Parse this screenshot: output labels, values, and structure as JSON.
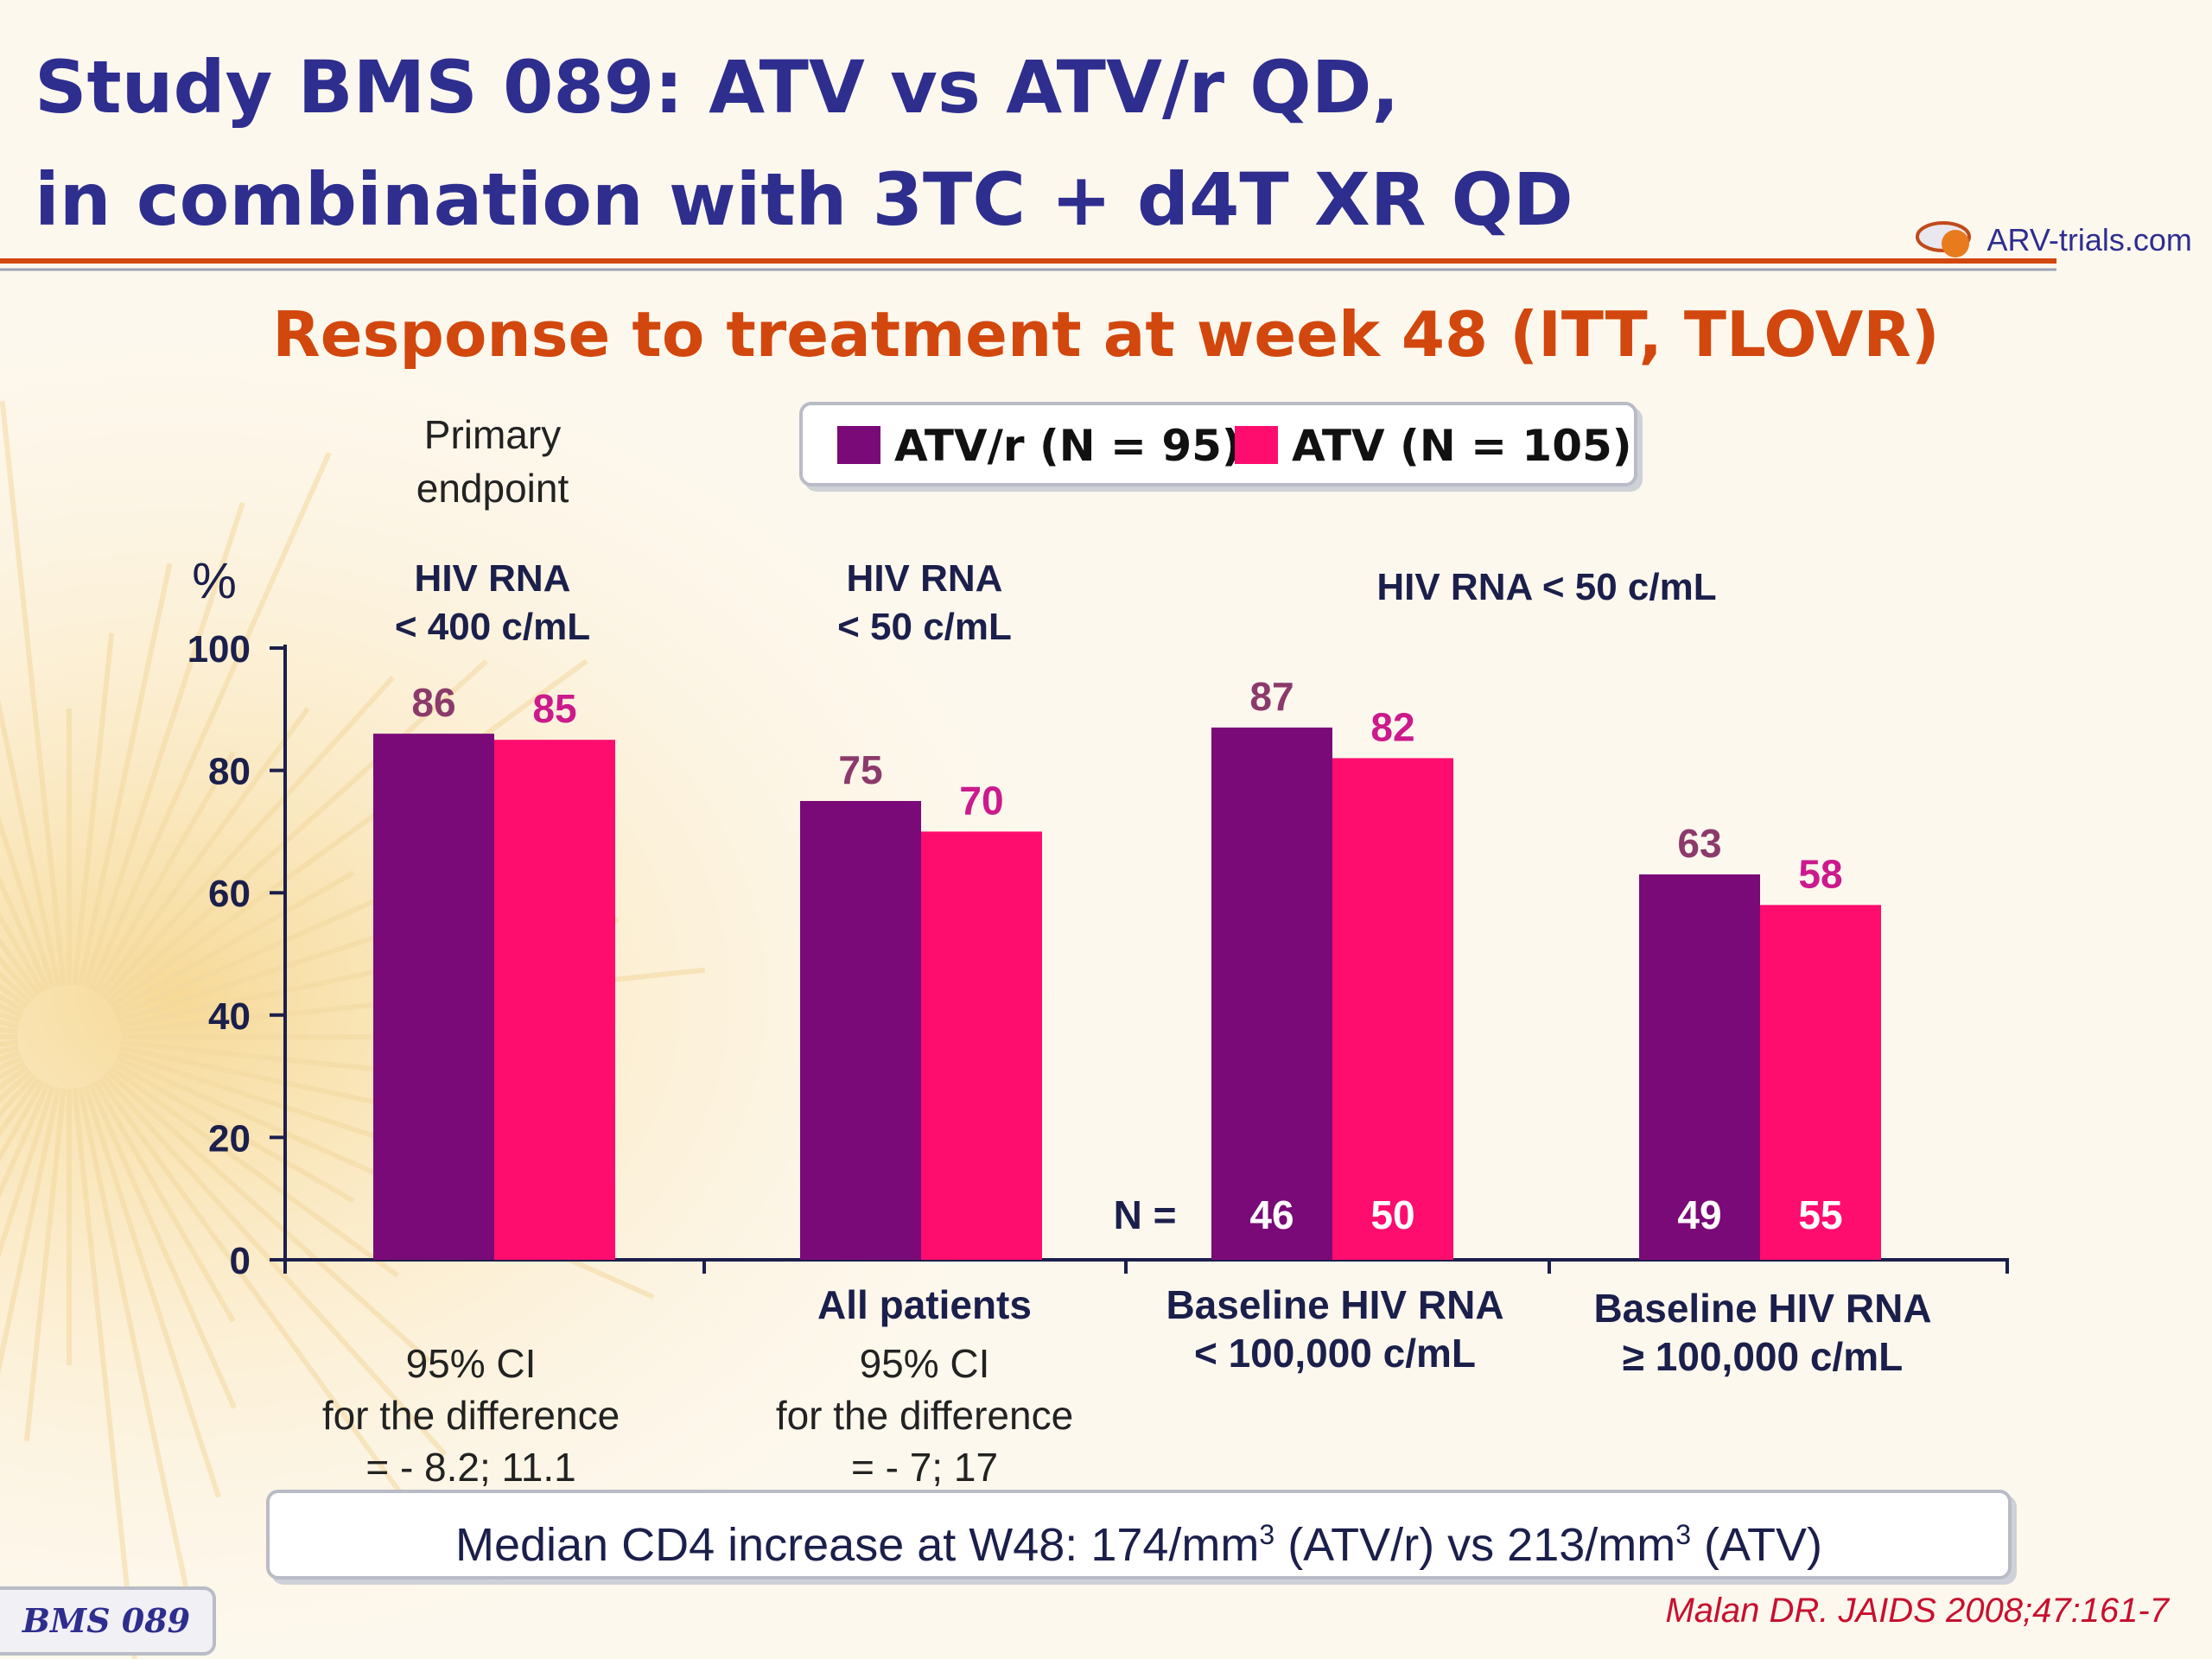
{
  "title_line1": "Study BMS 089: ATV vs ATV/r QD,",
  "title_line2": "in combination with 3TC + d4T XR QD",
  "logo_text": "ARV-trials.com",
  "subtitle": "Response to treatment at week 48 (ITT, TLOVR)",
  "legend": [
    {
      "label": "ATV/r (N = 95)",
      "color": "#7a0a78"
    },
    {
      "label": "ATV (N = 105)",
      "color": "#ff0d6e"
    }
  ],
  "primary_endpoint": "Primary endpoint",
  "group_headers": [
    {
      "line1": "HIV RNA",
      "line2": "< 400 c/mL"
    },
    {
      "line1": "HIV RNA",
      "line2": "< 50 c/mL"
    },
    {
      "line1": "HIV RNA < 50 c/mL",
      "line2": ""
    }
  ],
  "categories": [
    {
      "line1": "",
      "line2": ""
    },
    {
      "line1": "All patients",
      "line2": ""
    },
    {
      "line1": "Baseline HIV RNA",
      "line2": "< 100,000 c/mL"
    },
    {
      "line1": "Baseline HIV RNA",
      "line2": "≥ 100,000 c/mL"
    }
  ],
  "ci_notes": [
    {
      "line1": "95% CI",
      "line2": "for the difference",
      "line3": "= - 8.2; 11.1"
    },
    {
      "line1": "95% CI",
      "line2": "for the difference",
      "line3": "= - 7; 17"
    }
  ],
  "n_label": "N =",
  "cd4_note": {
    "prefix": "Median CD4 increase at W48: 174/mm",
    "sup1": "3",
    "middle": " (ATV/r) vs 213/mm",
    "sup2": "3",
    "suffix": " (ATV)"
  },
  "badge": "BMS 089",
  "reference": "Malan DR. JAIDS 2008;47:161-7",
  "chart_data": {
    "type": "bar",
    "title": "Response to treatment at week 48 (ITT, TLOVR)",
    "ylabel": "%",
    "ylim": [
      0,
      100
    ],
    "yticks": [
      0,
      20,
      40,
      60,
      80,
      100
    ],
    "categories": [
      "HIV RNA < 400 c/mL",
      "All patients",
      "Baseline HIV RNA < 100,000 c/mL",
      "Baseline HIV RNA ≥ 100,000 c/mL"
    ],
    "series": [
      {
        "name": "ATV/r (N = 95)",
        "values": [
          86,
          75,
          87,
          63
        ],
        "n": [
          null,
          null,
          46,
          49
        ],
        "color": "#7a0a78",
        "label_color": "#8b3a6b"
      },
      {
        "name": "ATV (N = 105)",
        "values": [
          85,
          70,
          82,
          58
        ],
        "n": [
          null,
          null,
          50,
          55
        ],
        "color": "#ff0d6e",
        "label_color": "#cc1a8c"
      }
    ]
  }
}
